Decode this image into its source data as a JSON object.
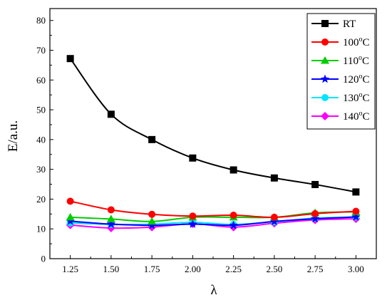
{
  "chart_data": {
    "type": "line",
    "title": "",
    "xlabel": "λ",
    "ylabel": "E/a.u.",
    "x": [
      1.25,
      1.5,
      1.75,
      2.0,
      2.25,
      2.5,
      2.75,
      3.0
    ],
    "x_tick_labels": [
      "1.25",
      "1.50",
      "1.75",
      "2.00",
      "2.25",
      "2.50",
      "2.75",
      "3.00"
    ],
    "ylim": [
      0,
      84
    ],
    "y_ticks": [
      0,
      10,
      20,
      30,
      40,
      50,
      60,
      70,
      80
    ],
    "y_tick_labels": [
      "0",
      "10",
      "20",
      "30",
      "40",
      "50",
      "60",
      "70",
      "80"
    ],
    "legend_position": "top-right",
    "grid": false,
    "series": [
      {
        "name": "RT",
        "label_main": "RT",
        "label_sup": "",
        "label_tail": "",
        "color": "#000000",
        "marker": "square",
        "values": [
          67.2,
          48.5,
          40.0,
          33.8,
          29.8,
          27.1,
          24.9,
          22.4
        ]
      },
      {
        "name": "100oC",
        "label_main": "100",
        "label_sup": "o",
        "label_tail": "C",
        "color": "#ff0000",
        "marker": "circle",
        "values": [
          19.3,
          16.4,
          14.9,
          14.3,
          14.6,
          13.9,
          15.1,
          15.9
        ]
      },
      {
        "name": "110oC",
        "label_main": "110",
        "label_sup": "o",
        "label_tail": "C",
        "color": "#00cc00",
        "marker": "triangle",
        "values": [
          13.9,
          13.3,
          12.5,
          13.9,
          13.9,
          13.9,
          15.4,
          15.7
        ]
      },
      {
        "name": "120oC",
        "label_main": "120",
        "label_sup": "o",
        "label_tail": "C",
        "color": "#0000ff",
        "marker": "star",
        "values": [
          12.6,
          11.6,
          11.2,
          11.6,
          11.2,
          12.5,
          13.4,
          14.0
        ]
      },
      {
        "name": "130oC",
        "label_main": "130",
        "label_sup": "o",
        "label_tail": "C",
        "color": "#00e5ff",
        "marker": "circle",
        "values": [
          12.0,
          11.5,
          11.6,
          12.2,
          11.5,
          12.4,
          13.6,
          14.0
        ]
      },
      {
        "name": "140oC",
        "label_main": "140",
        "label_sup": "o",
        "label_tail": "C",
        "color": "#ff00ff",
        "marker": "diamond",
        "values": [
          11.3,
          10.3,
          10.6,
          11.7,
          10.6,
          11.9,
          13.0,
          13.4
        ]
      }
    ]
  }
}
